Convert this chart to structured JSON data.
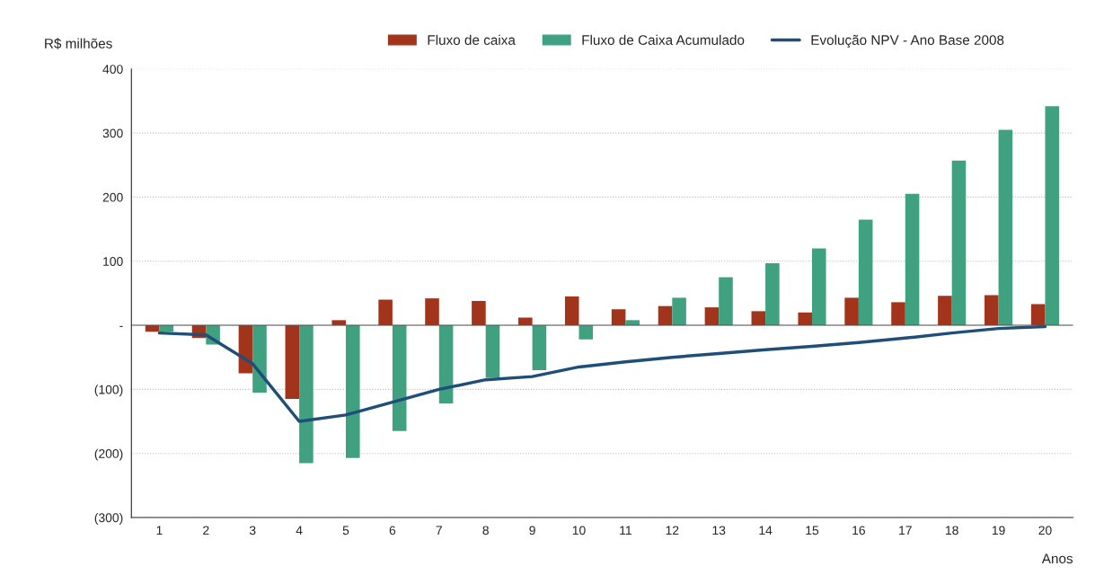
{
  "chart_data": {
    "type": "bar",
    "ylabel": "R$ milhões",
    "xlabel": "Anos",
    "categories": [
      "1",
      "2",
      "3",
      "4",
      "5",
      "6",
      "7",
      "8",
      "9",
      "10",
      "11",
      "12",
      "13",
      "14",
      "15",
      "16",
      "17",
      "18",
      "19",
      "20"
    ],
    "series": [
      {
        "name": "Fluxo de caixa",
        "color": "#a3341c",
        "values": [
          -10,
          -20,
          -75,
          -115,
          8,
          40,
          42,
          38,
          12,
          45,
          25,
          30,
          28,
          22,
          20,
          43,
          36,
          46,
          47,
          33
        ]
      },
      {
        "name": "Fluxo de Caixa Acumulado",
        "color": "#3fa17f",
        "values": [
          -10,
          -30,
          -105,
          -215,
          -207,
          -165,
          -122,
          -82,
          -70,
          -22,
          8,
          43,
          75,
          97,
          120,
          165,
          205,
          257,
          305,
          342
        ]
      },
      {
        "name": "Evolução NPV - Ano Base 2008",
        "type": "line",
        "color": "#1f4e79",
        "values": [
          -12,
          -15,
          -60,
          -150,
          -140,
          -120,
          -100,
          -85,
          -80,
          -65,
          -57,
          -50,
          -44,
          -38,
          -33,
          -27,
          -20,
          -12,
          -5,
          -2
        ]
      }
    ],
    "ylim": [
      -300,
      400
    ],
    "yticks": [
      400,
      300,
      200,
      100,
      {
        "value": 0,
        "label": "-"
      },
      {
        "value": -100,
        "label": "(100)"
      },
      {
        "value": -200,
        "label": "(200)"
      },
      {
        "value": -300,
        "label": "(300)"
      }
    ],
    "grid": "y",
    "legend": "top"
  }
}
